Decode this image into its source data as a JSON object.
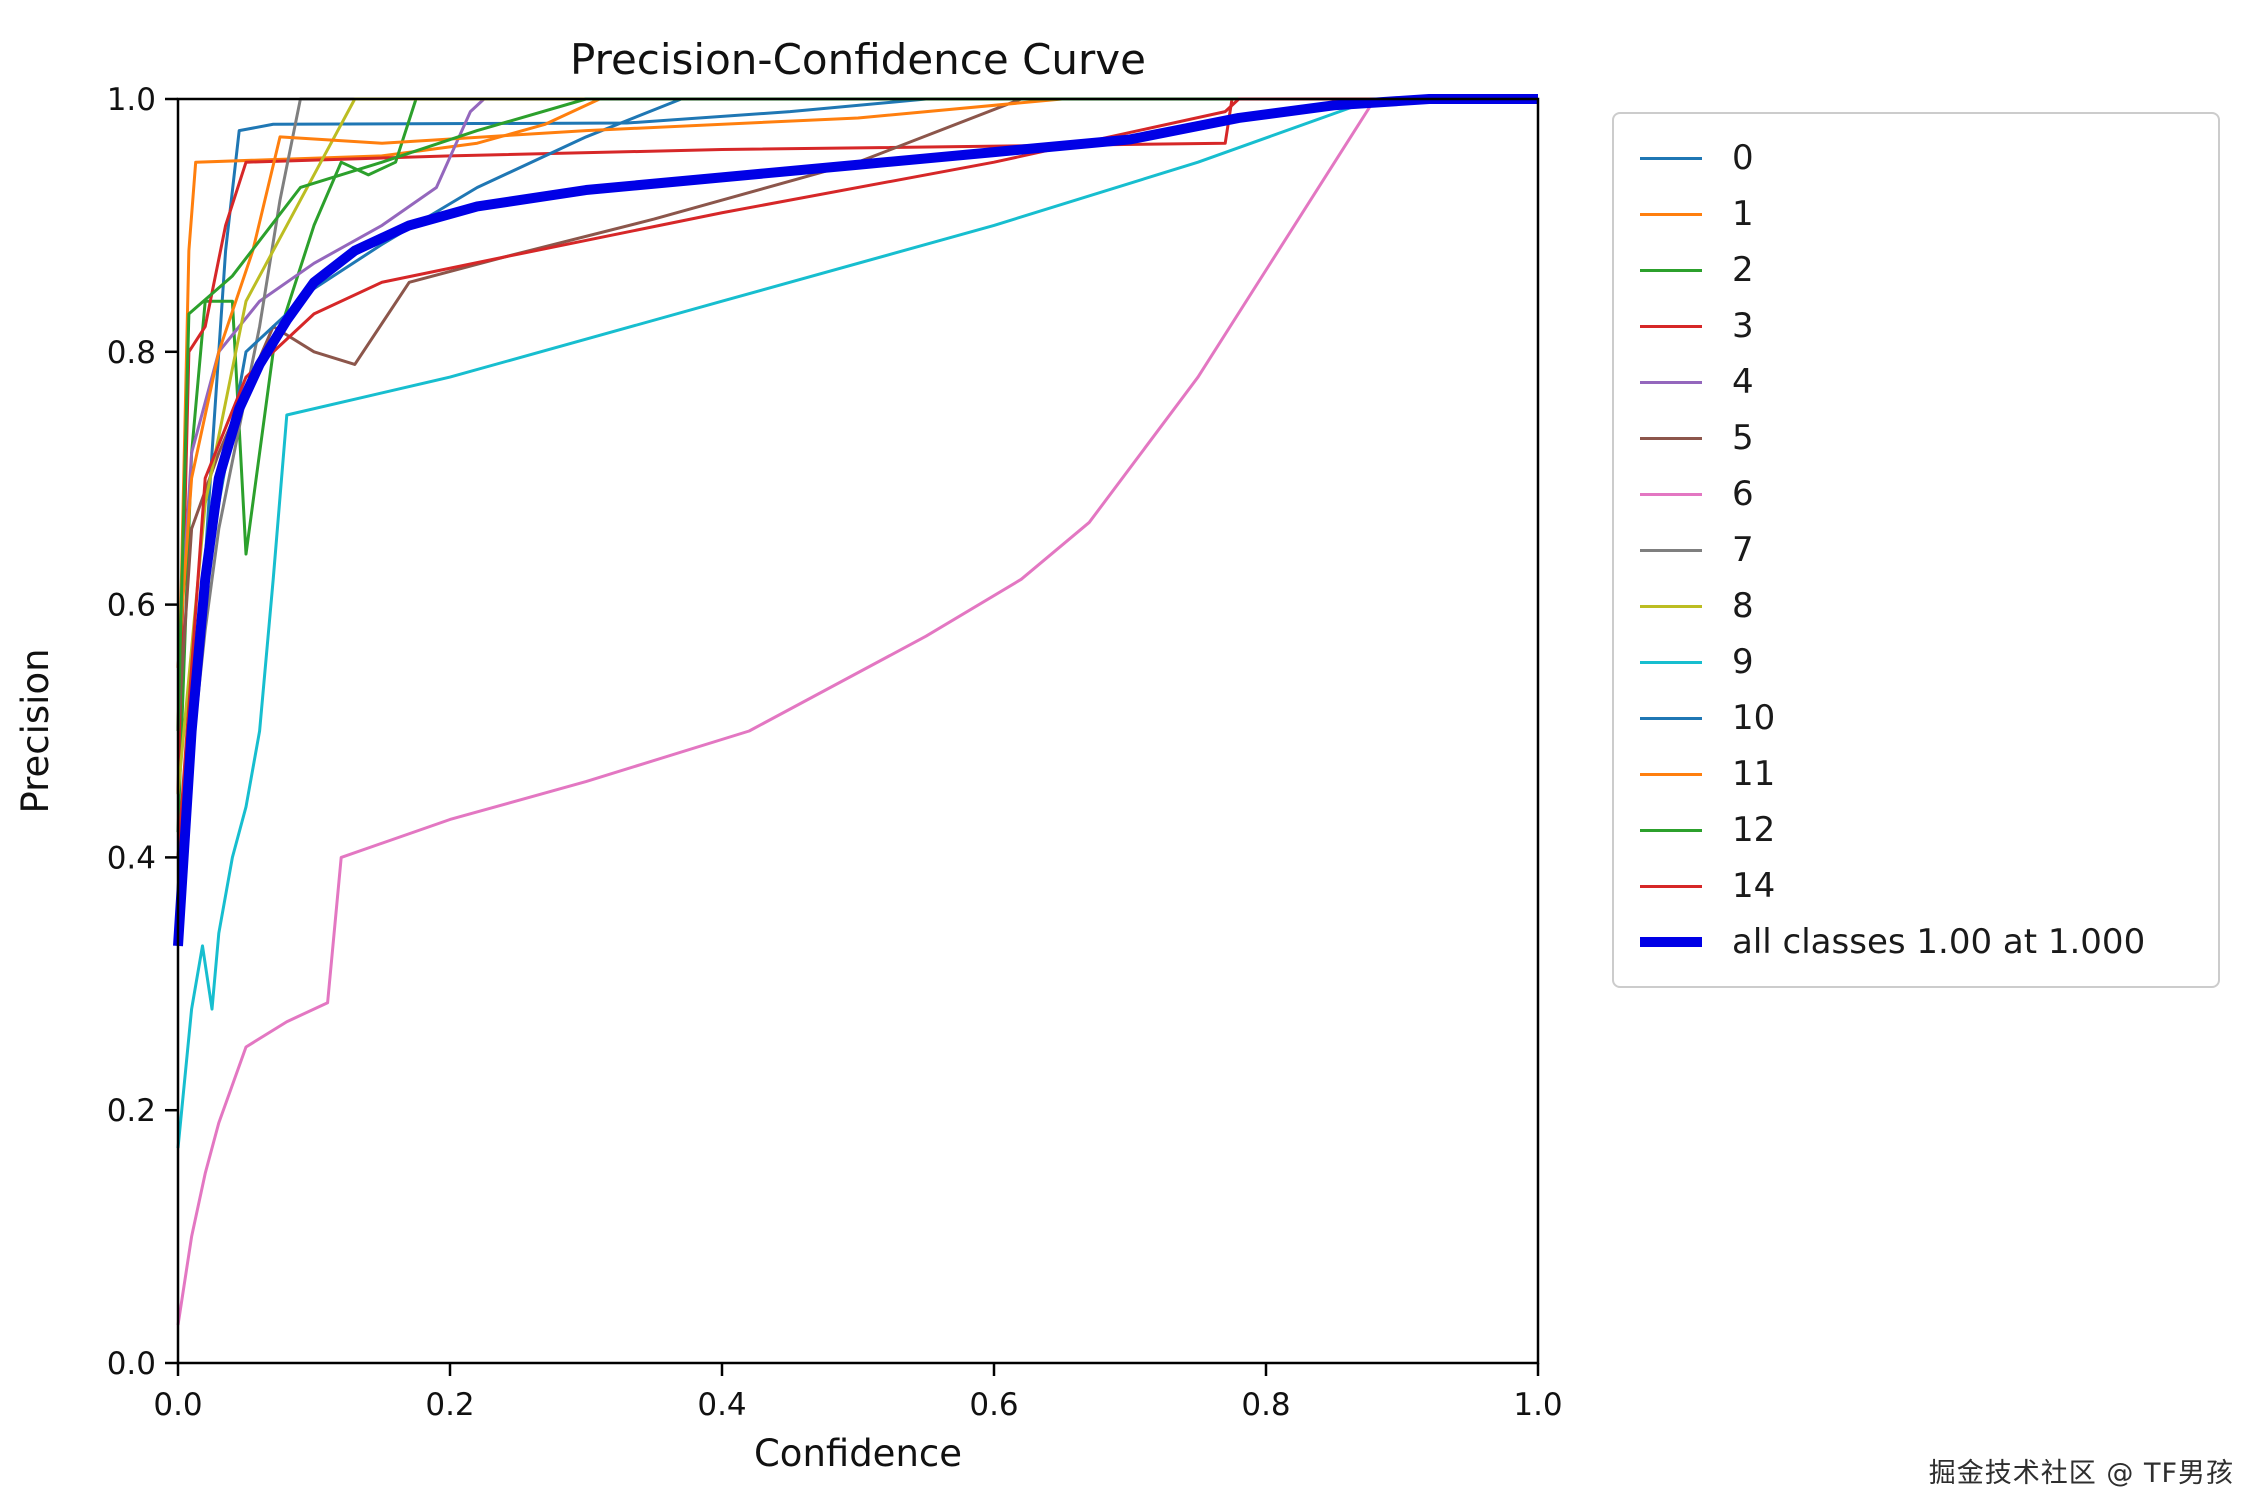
{
  "watermark": "掘金技术社区 @ TF男孩",
  "chart_data": {
    "type": "line",
    "title": "Precision-Confidence Curve",
    "xlabel": "Confidence",
    "ylabel": "Precision",
    "xlim": [
      0,
      1
    ],
    "ylim": [
      0,
      1
    ],
    "xticks": [
      0.0,
      0.2,
      0.4,
      0.6,
      0.8,
      1.0
    ],
    "yticks": [
      0.0,
      0.2,
      0.4,
      0.6,
      0.8,
      1.0
    ],
    "grid": false,
    "legend_position": "outside upper right",
    "series": [
      {
        "name": "0",
        "color": "#1f77b4",
        "width": 3,
        "points": [
          [
            0,
            0.35
          ],
          [
            0.015,
            0.55
          ],
          [
            0.025,
            0.72
          ],
          [
            0.035,
            0.88
          ],
          [
            0.045,
            0.975
          ],
          [
            0.07,
            0.98
          ],
          [
            0.33,
            0.981
          ],
          [
            0.45,
            0.99
          ],
          [
            0.55,
            1.0
          ],
          [
            1,
            1
          ]
        ]
      },
      {
        "name": "1",
        "color": "#ff7f0e",
        "width": 3,
        "points": [
          [
            0,
            0.5
          ],
          [
            0.008,
            0.88
          ],
          [
            0.013,
            0.95
          ],
          [
            0.15,
            0.955
          ],
          [
            0.22,
            0.965
          ],
          [
            0.27,
            0.98
          ],
          [
            0.31,
            1.0
          ],
          [
            1,
            1
          ]
        ]
      },
      {
        "name": "2",
        "color": "#2ca02c",
        "width": 3,
        "points": [
          [
            0,
            0.42
          ],
          [
            0.01,
            0.72
          ],
          [
            0.02,
            0.84
          ],
          [
            0.04,
            0.84
          ],
          [
            0.05,
            0.64
          ],
          [
            0.07,
            0.8
          ],
          [
            0.1,
            0.9
          ],
          [
            0.12,
            0.95
          ],
          [
            0.14,
            0.94
          ],
          [
            0.16,
            0.95
          ],
          [
            0.175,
            1.0
          ],
          [
            1,
            1
          ]
        ]
      },
      {
        "name": "3",
        "color": "#d62728",
        "width": 3,
        "points": [
          [
            0,
            0.45
          ],
          [
            0.008,
            0.8
          ],
          [
            0.02,
            0.82
          ],
          [
            0.035,
            0.9
          ],
          [
            0.05,
            0.95
          ],
          [
            0.2,
            0.955
          ],
          [
            0.4,
            0.96
          ],
          [
            0.77,
            0.965
          ],
          [
            0.775,
            1.0
          ],
          [
            1,
            1
          ]
        ]
      },
      {
        "name": "4",
        "color": "#9467bd",
        "width": 3,
        "points": [
          [
            0,
            0.55
          ],
          [
            0.01,
            0.72
          ],
          [
            0.03,
            0.8
          ],
          [
            0.06,
            0.84
          ],
          [
            0.1,
            0.87
          ],
          [
            0.15,
            0.9
          ],
          [
            0.19,
            0.93
          ],
          [
            0.215,
            0.99
          ],
          [
            0.225,
            1.0
          ],
          [
            1,
            1
          ]
        ]
      },
      {
        "name": "5",
        "color": "#8c564b",
        "width": 3,
        "points": [
          [
            0,
            0.5
          ],
          [
            0.01,
            0.66
          ],
          [
            0.03,
            0.72
          ],
          [
            0.05,
            0.77
          ],
          [
            0.07,
            0.82
          ],
          [
            0.1,
            0.8
          ],
          [
            0.13,
            0.79
          ],
          [
            0.17,
            0.855
          ],
          [
            0.24,
            0.875
          ],
          [
            0.35,
            0.905
          ],
          [
            0.5,
            0.95
          ],
          [
            0.62,
            1.0
          ],
          [
            1,
            1
          ]
        ]
      },
      {
        "name": "6",
        "color": "#e377c2",
        "width": 3,
        "points": [
          [
            0,
            0.03
          ],
          [
            0.01,
            0.1
          ],
          [
            0.02,
            0.15
          ],
          [
            0.03,
            0.19
          ],
          [
            0.05,
            0.25
          ],
          [
            0.08,
            0.27
          ],
          [
            0.11,
            0.285
          ],
          [
            0.12,
            0.4
          ],
          [
            0.2,
            0.43
          ],
          [
            0.3,
            0.46
          ],
          [
            0.42,
            0.5
          ],
          [
            0.55,
            0.575
          ],
          [
            0.62,
            0.62
          ],
          [
            0.67,
            0.665
          ],
          [
            0.75,
            0.78
          ],
          [
            0.88,
            1.0
          ],
          [
            1,
            1
          ]
        ]
      },
      {
        "name": "7",
        "color": "#7f7f7f",
        "width": 3,
        "points": [
          [
            0,
            0.33
          ],
          [
            0.01,
            0.48
          ],
          [
            0.02,
            0.58
          ],
          [
            0.03,
            0.66
          ],
          [
            0.045,
            0.74
          ],
          [
            0.06,
            0.82
          ],
          [
            0.075,
            0.92
          ],
          [
            0.09,
            1.0
          ],
          [
            1,
            1
          ]
        ]
      },
      {
        "name": "8",
        "color": "#bcbd22",
        "width": 3,
        "points": [
          [
            0,
            0.45
          ],
          [
            0.02,
            0.68
          ],
          [
            0.05,
            0.84
          ],
          [
            0.08,
            0.9
          ],
          [
            0.105,
            0.95
          ],
          [
            0.13,
            1.0
          ],
          [
            1,
            1
          ]
        ]
      },
      {
        "name": "9",
        "color": "#17becf",
        "width": 3,
        "points": [
          [
            0,
            0.17
          ],
          [
            0.01,
            0.28
          ],
          [
            0.018,
            0.33
          ],
          [
            0.025,
            0.28
          ],
          [
            0.03,
            0.34
          ],
          [
            0.04,
            0.4
          ],
          [
            0.05,
            0.44
          ],
          [
            0.06,
            0.5
          ],
          [
            0.07,
            0.62
          ],
          [
            0.08,
            0.75
          ],
          [
            0.14,
            0.765
          ],
          [
            0.2,
            0.78
          ],
          [
            0.4,
            0.84
          ],
          [
            0.6,
            0.9
          ],
          [
            0.75,
            0.95
          ],
          [
            0.88,
            1.0
          ],
          [
            1,
            1
          ]
        ]
      },
      {
        "name": "10",
        "color": "#1f77b4",
        "width": 3,
        "points": [
          [
            0,
            0.4
          ],
          [
            0.02,
            0.62
          ],
          [
            0.05,
            0.8
          ],
          [
            0.1,
            0.85
          ],
          [
            0.15,
            0.885
          ],
          [
            0.22,
            0.93
          ],
          [
            0.3,
            0.97
          ],
          [
            0.37,
            1.0
          ],
          [
            1,
            1
          ]
        ]
      },
      {
        "name": "11",
        "color": "#ff7f0e",
        "width": 3,
        "points": [
          [
            0,
            0.55
          ],
          [
            0.01,
            0.7
          ],
          [
            0.03,
            0.8
          ],
          [
            0.055,
            0.88
          ],
          [
            0.075,
            0.97
          ],
          [
            0.15,
            0.965
          ],
          [
            0.3,
            0.975
          ],
          [
            0.5,
            0.985
          ],
          [
            0.65,
            1.0
          ],
          [
            1,
            1
          ]
        ]
      },
      {
        "name": "12",
        "color": "#2ca02c",
        "width": 3,
        "points": [
          [
            0,
            0.5
          ],
          [
            0.008,
            0.83
          ],
          [
            0.04,
            0.86
          ],
          [
            0.09,
            0.93
          ],
          [
            0.15,
            0.95
          ],
          [
            0.22,
            0.975
          ],
          [
            0.3,
            1.0
          ],
          [
            1,
            1
          ]
        ]
      },
      {
        "name": "14",
        "color": "#d62728",
        "width": 3,
        "points": [
          [
            0,
            0.4
          ],
          [
            0.02,
            0.7
          ],
          [
            0.05,
            0.78
          ],
          [
            0.1,
            0.83
          ],
          [
            0.15,
            0.855
          ],
          [
            0.24,
            0.875
          ],
          [
            0.4,
            0.91
          ],
          [
            0.6,
            0.95
          ],
          [
            0.77,
            0.99
          ],
          [
            0.78,
            1.0
          ],
          [
            1,
            1
          ]
        ]
      },
      {
        "name": "all classes 1.00 at 1.000",
        "color": "#0000e6",
        "width": 10,
        "points": [
          [
            0,
            0.33
          ],
          [
            0.01,
            0.5
          ],
          [
            0.02,
            0.62
          ],
          [
            0.03,
            0.7
          ],
          [
            0.045,
            0.755
          ],
          [
            0.06,
            0.79
          ],
          [
            0.08,
            0.825
          ],
          [
            0.1,
            0.855
          ],
          [
            0.13,
            0.88
          ],
          [
            0.17,
            0.9
          ],
          [
            0.22,
            0.915
          ],
          [
            0.3,
            0.928
          ],
          [
            0.4,
            0.938
          ],
          [
            0.5,
            0.948
          ],
          [
            0.6,
            0.958
          ],
          [
            0.7,
            0.968
          ],
          [
            0.78,
            0.985
          ],
          [
            0.85,
            0.995
          ],
          [
            0.92,
            1.0
          ],
          [
            1,
            1
          ]
        ]
      }
    ]
  }
}
